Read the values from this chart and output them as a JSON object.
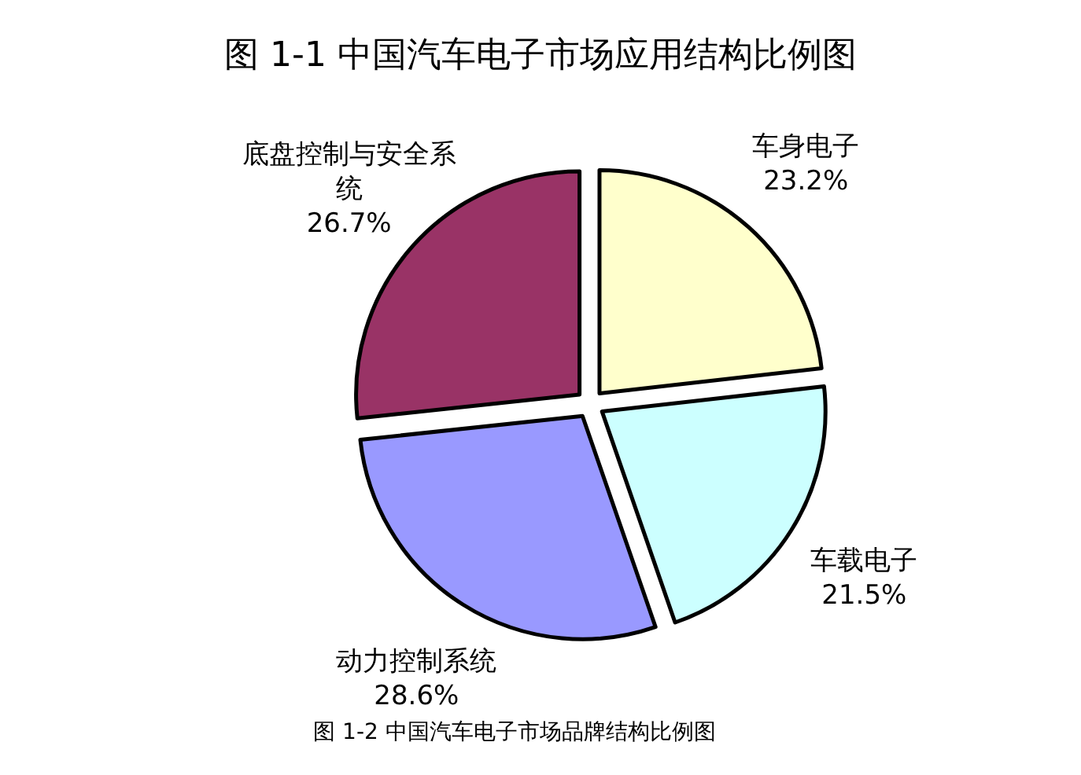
{
  "chart_data": {
    "type": "pie",
    "title": "图 1-1 中国汽车电子市场应用结构比例图",
    "categories": [
      "车身电子",
      "车载电子",
      "动力控制系统",
      "底盘控制与安全系统"
    ],
    "values": [
      23.2,
      21.5,
      28.6,
      26.7
    ],
    "colors": [
      "#ffffcc",
      "#ccffff",
      "#9999ff",
      "#993366"
    ],
    "value_labels": [
      "23.2%",
      "21.5%",
      "28.6%",
      "26.7%"
    ],
    "annotations": [
      "图 1-2 中国汽车电子市场品牌结构比例图"
    ]
  }
}
